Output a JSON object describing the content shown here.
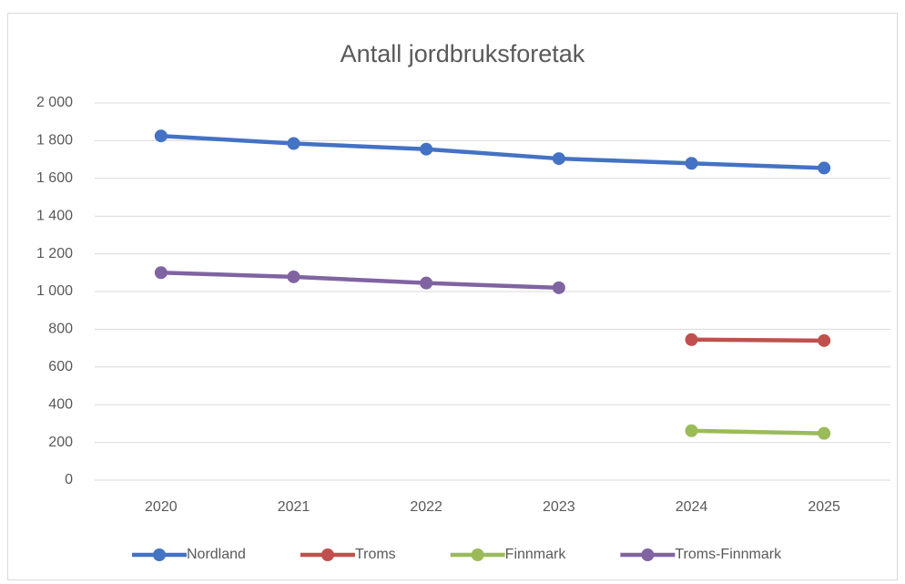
{
  "chart_data": {
    "type": "line",
    "title": "Antall jordbruksforetak",
    "categories": [
      "2020",
      "2021",
      "2022",
      "2023",
      "2024",
      "2025"
    ],
    "series": [
      {
        "name": "Nordland",
        "color": "#4472c4",
        "values": [
          1825,
          1785,
          1755,
          1705,
          1680,
          1655
        ]
      },
      {
        "name": "Troms",
        "color": "#c0504d",
        "values": [
          null,
          null,
          null,
          null,
          745,
          740
        ]
      },
      {
        "name": "Finnmark",
        "color": "#9bbb59",
        "values": [
          null,
          null,
          null,
          null,
          262,
          248
        ]
      },
      {
        "name": "Troms-Finnmark",
        "color": "#8064a2",
        "values": [
          1100,
          1078,
          1045,
          1020,
          null,
          null
        ]
      }
    ],
    "ylim": [
      0,
      2000
    ],
    "yticks": [
      0,
      200,
      400,
      600,
      800,
      {
        "value": 1000,
        "label": "1 000"
      },
      {
        "value": 1200,
        "label": "1 200"
      },
      {
        "value": 1400,
        "label": "1 400"
      },
      {
        "value": 1600,
        "label": "1 600"
      },
      {
        "value": 1800,
        "label": "1 800"
      },
      {
        "value": 2000,
        "label": "2 000"
      }
    ],
    "grid": true,
    "legend": "bottom"
  }
}
